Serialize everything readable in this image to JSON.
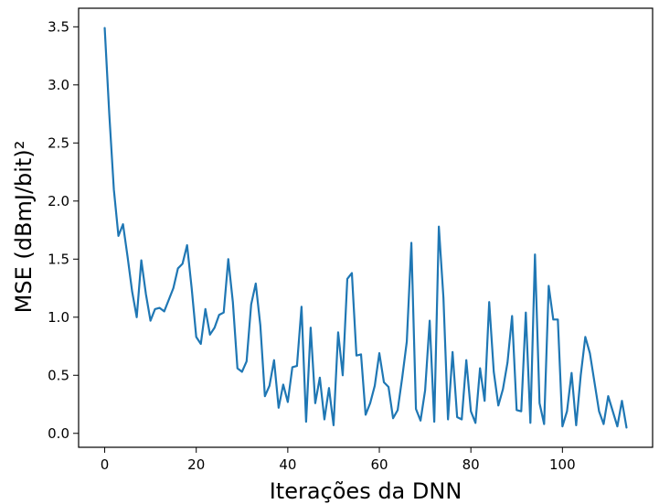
{
  "chart_data": {
    "type": "line",
    "xlabel": "Iterações da DNN",
    "ylabel": "MSE (dBmJ/bit)²",
    "xlim": [
      -5.7,
      119.7
    ],
    "ylim": [
      -0.12,
      3.66
    ],
    "xticks": [
      0,
      20,
      40,
      60,
      80,
      100
    ],
    "xtick_labels": [
      "0",
      "20",
      "40",
      "60",
      "80",
      "100"
    ],
    "yticks": [
      0.0,
      0.5,
      1.0,
      1.5,
      2.0,
      2.5,
      3.0,
      3.5
    ],
    "ytick_labels": [
      "0.0",
      "0.5",
      "1.0",
      "1.5",
      "2.0",
      "2.5",
      "3.0",
      "3.5"
    ],
    "grid": false,
    "series": [
      {
        "color": "#1f77b4",
        "x": [
          0,
          1,
          2,
          3,
          4,
          5,
          6,
          7,
          8,
          9,
          10,
          11,
          12,
          13,
          14,
          15,
          16,
          17,
          18,
          19,
          20,
          21,
          22,
          23,
          24,
          25,
          26,
          27,
          28,
          29,
          30,
          31,
          32,
          33,
          34,
          35,
          36,
          37,
          38,
          39,
          40,
          41,
          42,
          43,
          44,
          45,
          46,
          47,
          48,
          49,
          50,
          51,
          52,
          53,
          54,
          55,
          56,
          57,
          58,
          59,
          60,
          61,
          62,
          63,
          64,
          65,
          66,
          67,
          68,
          69,
          70,
          71,
          72,
          73,
          74,
          75,
          76,
          77,
          78,
          79,
          80,
          81,
          82,
          83,
          84,
          85,
          86,
          87,
          88,
          89,
          90,
          91,
          92,
          93,
          94,
          95,
          96,
          97,
          98,
          99,
          100,
          101,
          102,
          103,
          104,
          105,
          106,
          107,
          108,
          109,
          110,
          111,
          112,
          113,
          114
        ],
        "values": [
          3.49,
          2.75,
          2.1,
          1.7,
          1.8,
          1.52,
          1.22,
          1.0,
          1.49,
          1.2,
          0.97,
          1.07,
          1.08,
          1.05,
          1.15,
          1.25,
          1.42,
          1.46,
          1.62,
          1.25,
          0.83,
          0.77,
          1.07,
          0.85,
          0.91,
          1.02,
          1.04,
          1.5,
          1.13,
          0.56,
          0.53,
          0.62,
          1.11,
          1.29,
          0.93,
          0.32,
          0.41,
          0.63,
          0.22,
          0.42,
          0.27,
          0.57,
          0.58,
          1.09,
          0.1,
          0.91,
          0.26,
          0.48,
          0.12,
          0.39,
          0.07,
          0.87,
          0.5,
          1.33,
          1.38,
          0.67,
          0.68,
          0.16,
          0.26,
          0.41,
          0.69,
          0.44,
          0.4,
          0.13,
          0.2,
          0.48,
          0.79,
          1.64,
          0.21,
          0.11,
          0.37,
          0.97,
          0.1,
          1.78,
          1.17,
          0.12,
          0.7,
          0.14,
          0.12,
          0.63,
          0.19,
          0.09,
          0.56,
          0.28,
          1.13,
          0.53,
          0.24,
          0.38,
          0.61,
          1.01,
          0.2,
          0.19,
          1.04,
          0.09,
          1.54,
          0.26,
          0.08,
          1.27,
          0.98,
          0.98,
          0.06,
          0.19,
          0.52,
          0.07,
          0.5,
          0.83,
          0.69,
          0.44,
          0.19,
          0.08,
          0.32,
          0.19,
          0.06,
          0.28,
          0.05
        ]
      }
    ]
  }
}
